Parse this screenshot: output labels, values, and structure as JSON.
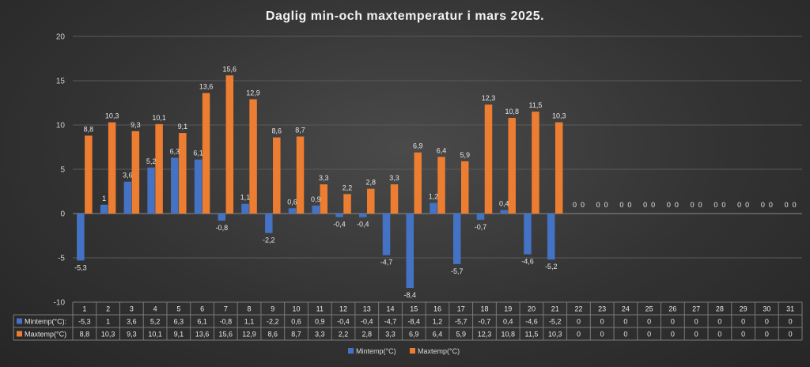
{
  "chart_data": {
    "type": "bar",
    "title": "Daglig min-och maxtemperatur i mars 2025.",
    "categories": [
      "1",
      "2",
      "3",
      "4",
      "5",
      "6",
      "7",
      "8",
      "9",
      "10",
      "11",
      "12",
      "13",
      "14",
      "15",
      "16",
      "17",
      "18",
      "19",
      "20",
      "21",
      "22",
      "23",
      "24",
      "25",
      "26",
      "27",
      "28",
      "29",
      "30",
      "31"
    ],
    "series": [
      {
        "name": "Mintemp(°C):",
        "legend": "Mintemp(°C)",
        "color": "#4472c4",
        "values": [
          -5.3,
          1,
          3.6,
          5.2,
          6.3,
          6.1,
          -0.8,
          1.1,
          -2.2,
          0.6,
          0.9,
          -0.4,
          -0.4,
          -4.7,
          -8.4,
          1.2,
          -5.7,
          -0.7,
          0.4,
          -4.6,
          -5.2,
          0,
          0,
          0,
          0,
          0,
          0,
          0,
          0,
          0,
          0
        ]
      },
      {
        "name": "Maxtemp(°C)",
        "legend": "Maxtemp(°C)",
        "color": "#ed7d31",
        "values": [
          8.8,
          10.3,
          9.3,
          10.1,
          9.1,
          13.6,
          15.6,
          12.9,
          8.6,
          8.7,
          3.3,
          2.2,
          2.8,
          3.3,
          6.9,
          6.4,
          5.9,
          12.3,
          10.8,
          11.5,
          10.3,
          0,
          0,
          0,
          0,
          0,
          0,
          0,
          0,
          0,
          0
        ]
      }
    ],
    "ylim": [
      -10,
      20
    ],
    "yticks": [
      -10,
      -5,
      0,
      5,
      10,
      15,
      20
    ],
    "grid": true,
    "legend_position": "bottom",
    "decimal_separator": ","
  }
}
